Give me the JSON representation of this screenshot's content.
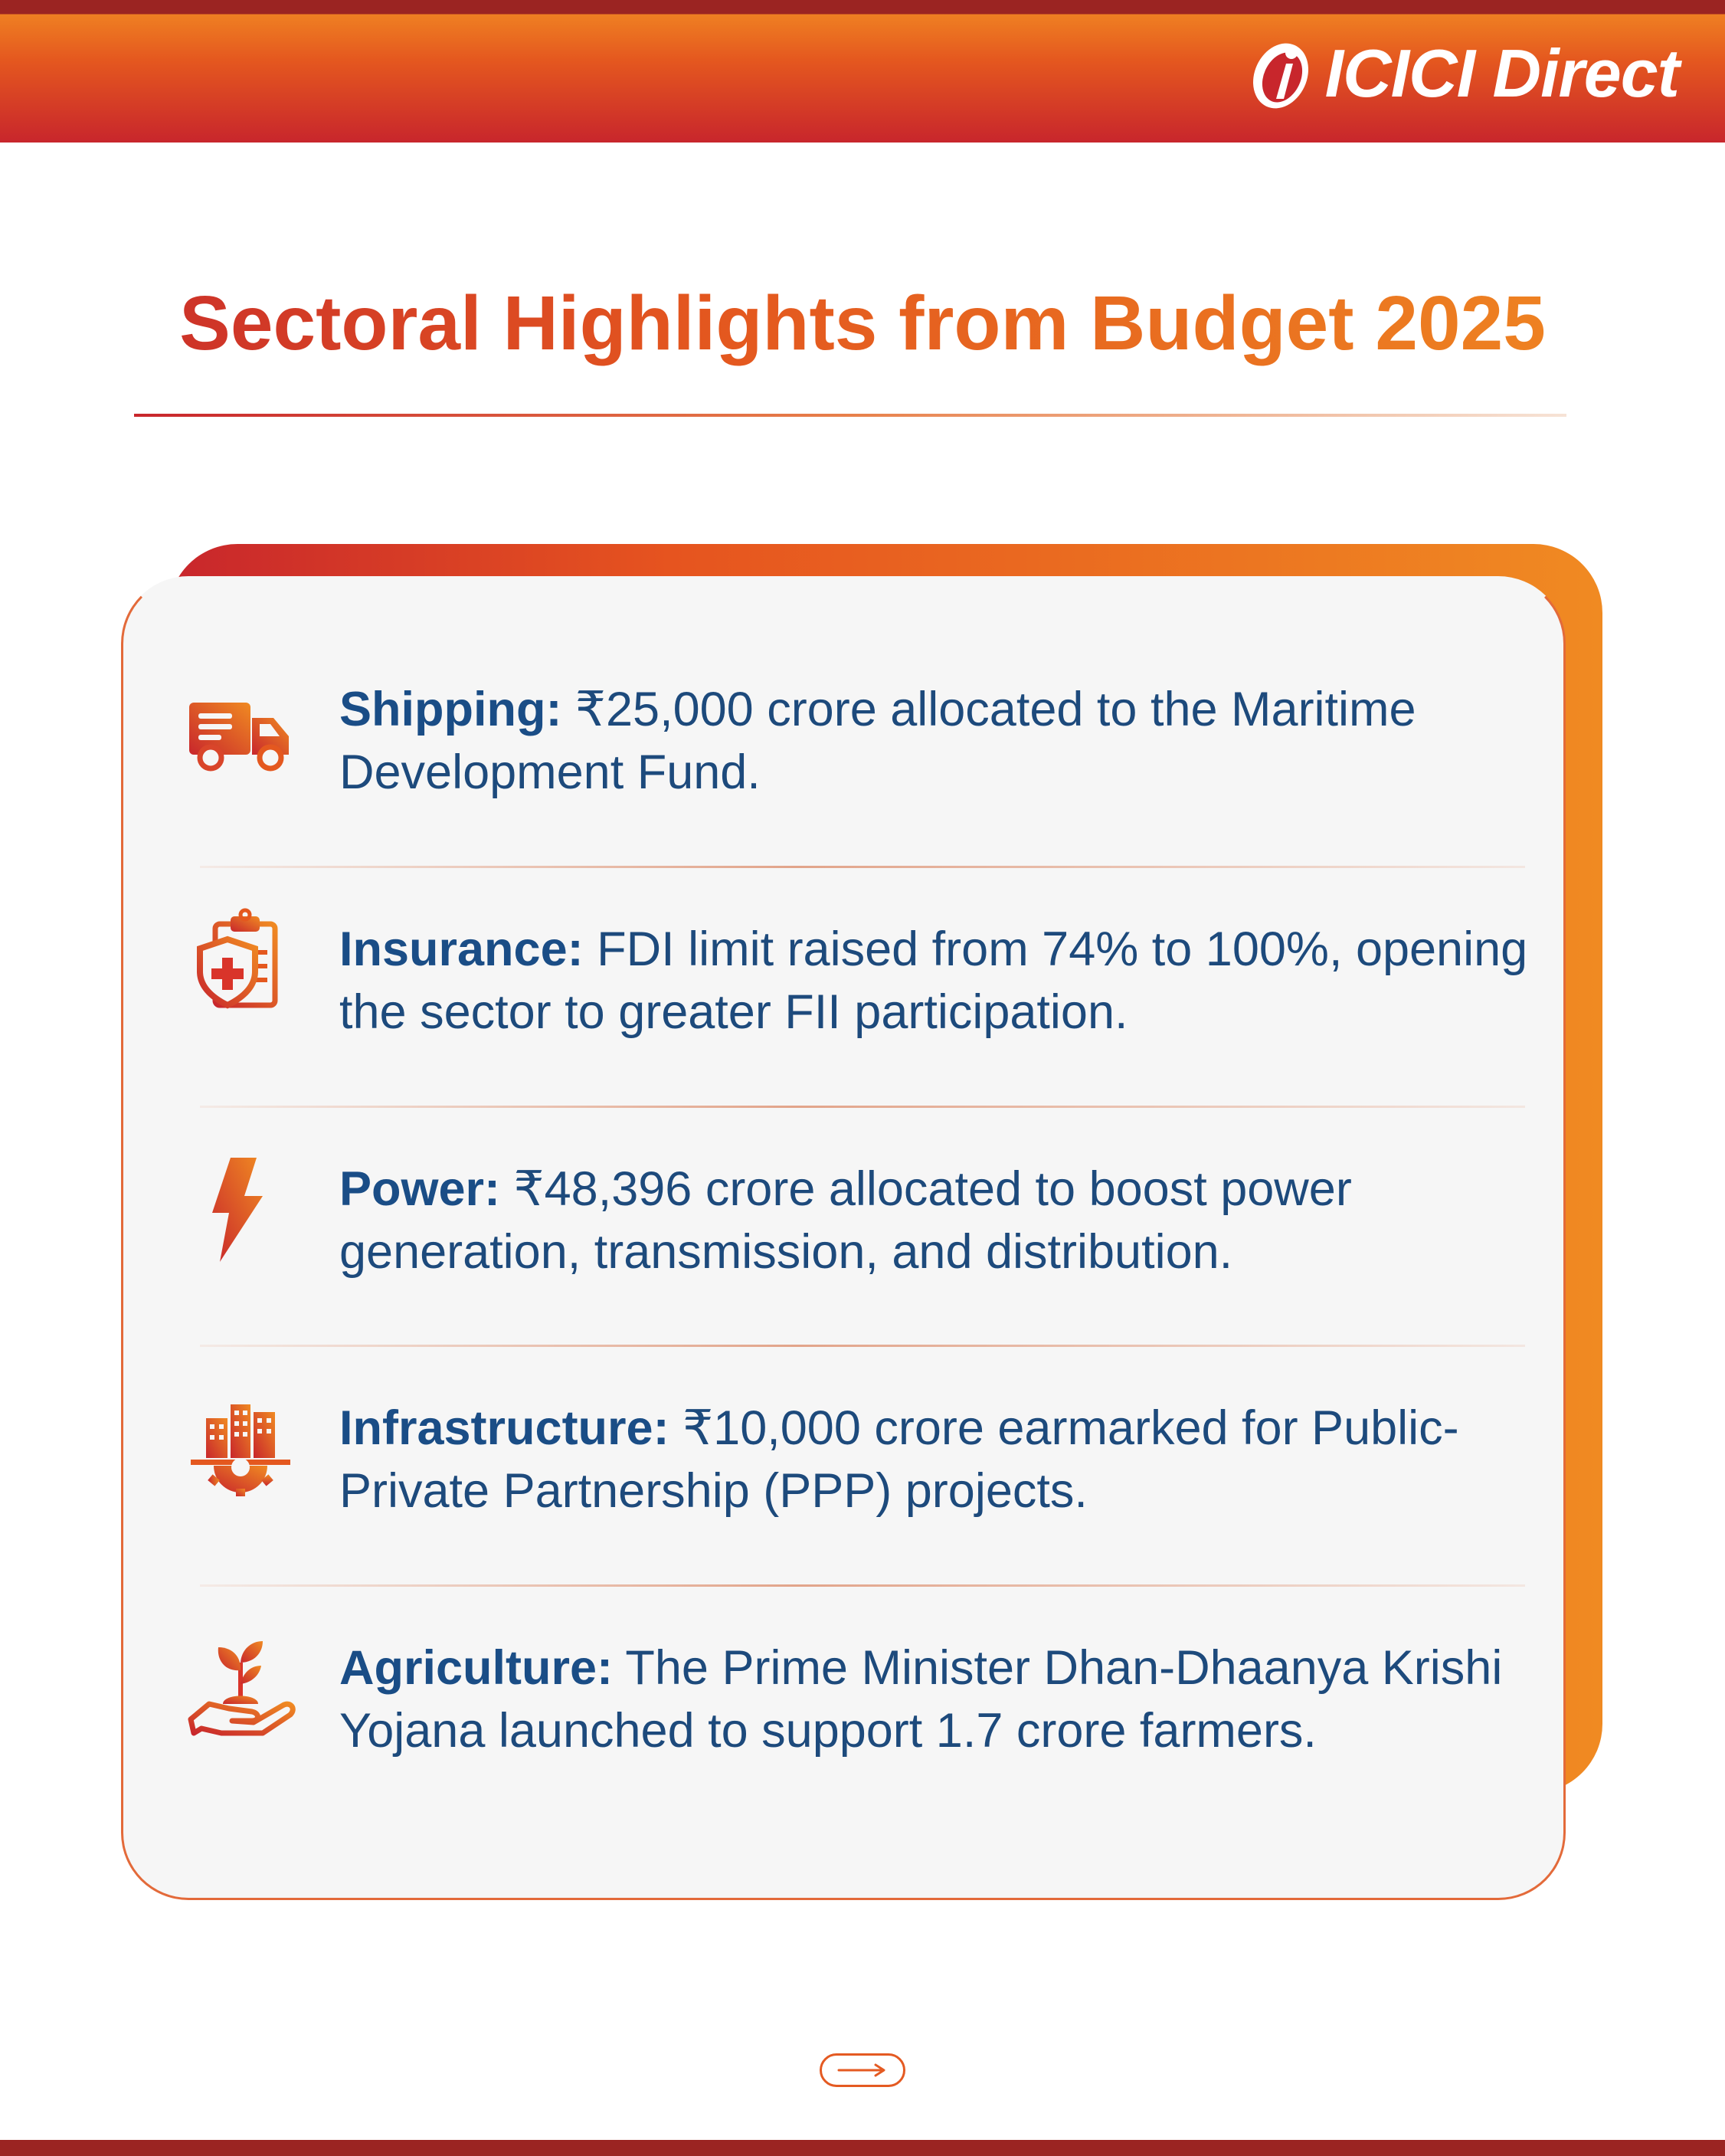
{
  "brand": {
    "logo_text": "ICICI Direct"
  },
  "header": {
    "title": "Sectoral Highlights from Budget 2025"
  },
  "colors": {
    "accent_red": "#c8262c",
    "accent_orange": "#f08a22",
    "text_navy": "#1d4a7c"
  },
  "items": [
    {
      "icon": "delivery-truck-icon",
      "heading": "Shipping:",
      "body": " ₹25,000 crore allocated to the Maritime Development Fund."
    },
    {
      "icon": "insurance-shield-clipboard-icon",
      "heading": "Insurance:",
      "body": " FDI limit raised from 74% to 100%, opening the sector to greater FII participation."
    },
    {
      "icon": "lightning-bolt-icon",
      "heading": "Power:",
      "body": " ₹48,396 crore allocated to boost power generation, transmission, and distribution."
    },
    {
      "icon": "buildings-gear-icon",
      "heading": "Infrastructure:",
      "body": " ₹10,000 crore earmarked for Public-Private Partnership (PPP) projects."
    },
    {
      "icon": "hand-plant-icon",
      "heading": "Agriculture:",
      "body": " The Prime Minister Dhan-Dhaanya Krishi Yojana launched to support 1.7 crore farmers."
    }
  ],
  "footer": {
    "next_icon": "right-arrow-icon"
  }
}
